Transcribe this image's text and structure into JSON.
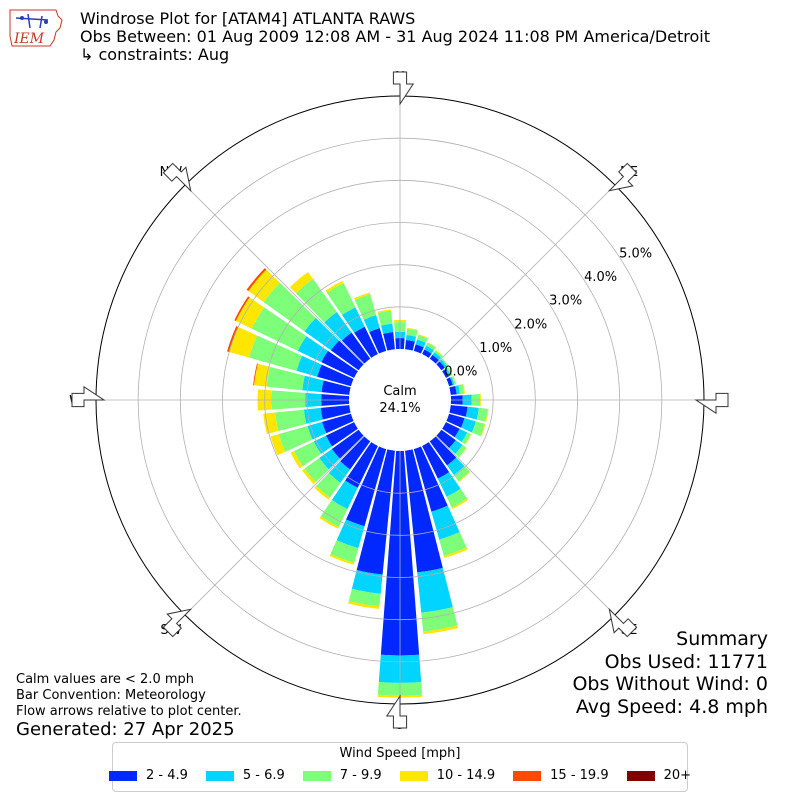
{
  "header": {
    "title": "Windrose Plot for [ATAM4] ATLANTA RAWS",
    "period": "Obs Between: 01 Aug 2009 12:08 AM - 31 Aug 2024 11:08 PM America/Detroit",
    "constraints": "↳ constraints: Aug"
  },
  "logo": {
    "text": "IEM",
    "icon": "iem-logo-icon"
  },
  "notes": {
    "line1": "Calm values are < 2.0 mph",
    "line2": "Bar Convention: Meteorology",
    "line3": "Flow arrows relative to plot center.",
    "generated": "Generated: 27 Apr 2025"
  },
  "summary": {
    "title": "Summary",
    "obs_used": "Obs Used: 11771",
    "obs_without_wind": "Obs Without Wind: 0",
    "avg_speed": "Avg Speed: 4.8 mph"
  },
  "legend": {
    "title": "Wind Speed [mph]",
    "items": [
      {
        "label": "2 - 4.9",
        "color": "#0028ff"
      },
      {
        "label": "5 - 6.9",
        "color": "#00d4ff"
      },
      {
        "label": "7 - 9.9",
        "color": "#7dff7a"
      },
      {
        "label": "10 - 14.9",
        "color": "#ffe600"
      },
      {
        "label": "15 - 19.9",
        "color": "#ff4a00"
      },
      {
        "label": "20+",
        "color": "#800000"
      }
    ]
  },
  "chart_data": {
    "type": "windrose",
    "center_label": "Calm",
    "center_value": "24.1%",
    "calm_percent": 24.1,
    "rmax": 6.0,
    "ring_labels": [
      "0.0%",
      "1.0%",
      "2.0%",
      "3.0%",
      "4.0%",
      "5.0%"
    ],
    "ring_values": [
      0,
      1,
      2,
      3,
      4,
      5
    ],
    "compass": [
      "N",
      "NE",
      "E",
      "SE",
      "S",
      "SW",
      "W",
      "NW"
    ],
    "speed_bins": [
      "2 - 4.9",
      "5 - 6.9",
      "7 - 9.9",
      "10 - 14.9",
      "15 - 19.9",
      "20+"
    ],
    "colors": [
      "#0028ff",
      "#00d4ff",
      "#7dff7a",
      "#ffe600",
      "#ff4a00",
      "#800000"
    ],
    "directions_deg": [
      0,
      10,
      20,
      30,
      40,
      50,
      60,
      70,
      80,
      90,
      100,
      110,
      120,
      130,
      140,
      150,
      160,
      170,
      180,
      190,
      200,
      210,
      220,
      230,
      240,
      250,
      260,
      270,
      280,
      290,
      300,
      310,
      320,
      330,
      340,
      350
    ],
    "values": [
      [
        0.26,
        0.15,
        0.23,
        0.05,
        0,
        0
      ],
      [
        0.22,
        0.12,
        0.15,
        0.02,
        0,
        0
      ],
      [
        0.16,
        0.12,
        0.11,
        0.02,
        0,
        0
      ],
      [
        0.12,
        0.1,
        0.08,
        0.01,
        0,
        0
      ],
      [
        0.11,
        0.08,
        0.05,
        0.01,
        0,
        0
      ],
      [
        0.1,
        0.06,
        0.04,
        0,
        0,
        0
      ],
      [
        0.08,
        0.05,
        0.04,
        0,
        0,
        0
      ],
      [
        0.09,
        0.04,
        0.04,
        0.01,
        0,
        0
      ],
      [
        0.14,
        0.08,
        0.1,
        0.02,
        0,
        0
      ],
      [
        0.28,
        0.21,
        0.2,
        0.02,
        0,
        0
      ],
      [
        0.4,
        0.27,
        0.21,
        0.02,
        0,
        0
      ],
      [
        0.38,
        0.28,
        0.22,
        0.02,
        0,
        0
      ],
      [
        0.36,
        0.2,
        0.1,
        0.01,
        0,
        0
      ],
      [
        0.42,
        0.2,
        0.11,
        0.01,
        0,
        0
      ],
      [
        0.7,
        0.28,
        0.18,
        0.02,
        0,
        0
      ],
      [
        0.86,
        0.48,
        0.28,
        0.04,
        0,
        0
      ],
      [
        1.54,
        0.69,
        0.4,
        0.05,
        0,
        0
      ],
      [
        2.9,
        0.96,
        0.45,
        0.06,
        0,
        0
      ],
      [
        4.85,
        0.65,
        0.3,
        0.05,
        0,
        0
      ],
      [
        2.95,
        0.46,
        0.3,
        0.06,
        0,
        0
      ],
      [
        1.9,
        0.54,
        0.36,
        0.05,
        0,
        0
      ],
      [
        1.1,
        0.56,
        0.47,
        0.05,
        0,
        0
      ],
      [
        0.82,
        0.39,
        0.43,
        0.06,
        0,
        0
      ],
      [
        0.78,
        0.37,
        0.43,
        0.07,
        0,
        0
      ],
      [
        0.74,
        0.32,
        0.52,
        0.09,
        0,
        0
      ],
      [
        0.71,
        0.36,
        0.71,
        0.2,
        0,
        0
      ],
      [
        0.68,
        0.4,
        0.69,
        0.28,
        0,
        0
      ],
      [
        0.66,
        0.38,
        0.8,
        0.33,
        0,
        0
      ],
      [
        0.66,
        0.46,
        0.85,
        0.3,
        0.02,
        0
      ],
      [
        0.83,
        0.51,
        1.17,
        0.49,
        0.05,
        0
      ],
      [
        0.86,
        0.62,
        1.21,
        0.42,
        0.04,
        0
      ],
      [
        0.81,
        0.77,
        1.19,
        0.45,
        0.05,
        0
      ],
      [
        0.76,
        0.6,
        0.97,
        0.2,
        0,
        0
      ],
      [
        0.72,
        0.51,
        0.64,
        0.06,
        0,
        0
      ],
      [
        0.56,
        0.32,
        0.52,
        0.04,
        0,
        0
      ],
      [
        0.41,
        0.2,
        0.31,
        0.03,
        0,
        0
      ]
    ]
  }
}
